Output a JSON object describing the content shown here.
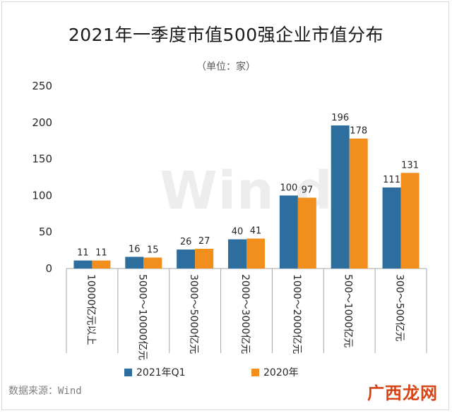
{
  "title": "2021年一季度市值500强企业市值分布",
  "subtitle": "（单位：家）",
  "watermark": "Win.d",
  "source": "数据来源：Wind",
  "brand": "广西龙网",
  "colors": {
    "series1": "#2e6e9e",
    "series2": "#f28e1c",
    "axis": "#a6a6a6",
    "text": "#262626"
  },
  "chart_data": {
    "type": "bar",
    "title": "2021年一季度市值500强企业市值分布",
    "subtitle": "（单位：家）",
    "categories": [
      "10000亿元以上",
      "5000～10000亿元",
      "3000～5000亿元",
      "2000～3000亿元",
      "1000～2000亿元",
      "500～1000亿元",
      "300～500亿元"
    ],
    "series": [
      {
        "name": "2021年Q1",
        "values": [
          11,
          16,
          26,
          40,
          100,
          196,
          111
        ]
      },
      {
        "name": "2020年",
        "values": [
          11,
          15,
          27,
          41,
          97,
          178,
          131
        ]
      }
    ],
    "ylim": [
      0,
      250
    ],
    "yticks": [
      0,
      50,
      100,
      150,
      200,
      250
    ],
    "grid": false,
    "legend_position": "bottom"
  }
}
